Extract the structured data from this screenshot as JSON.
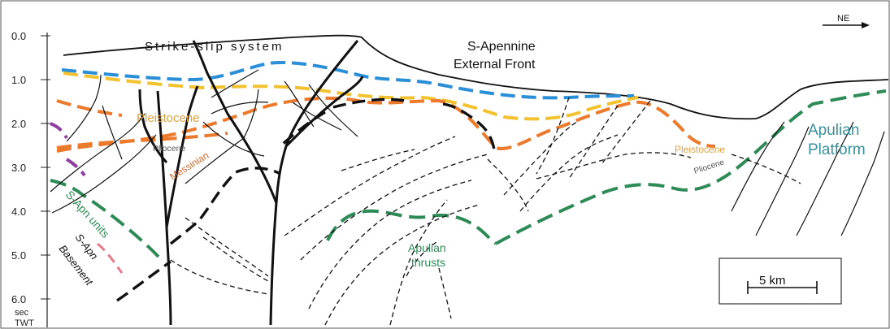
{
  "title": "Strike-slip system",
  "front_label": [
    "S-Apennine",
    "External Front"
  ],
  "direction": "NE",
  "scale_bar": "5 km",
  "y_axis": {
    "ticks": [
      "0.0",
      "1.0",
      "2.0",
      "3.0",
      "4.0",
      "5.0",
      "6.0"
    ],
    "unit": [
      "sec",
      "TWT"
    ]
  },
  "labels": {
    "pleistocene_left": "Pleistocene",
    "pliocene_left": "Pliocene",
    "messinian": "Messinian",
    "s_apn_units": "S-Apn units",
    "s_apn_basement": [
      "S-Apn",
      "Basement"
    ],
    "apulian_thrusts": [
      "Apulian",
      "thrusts"
    ],
    "pleistocene_right": "Pleistocene",
    "pliocene_right": "Pliocene",
    "apulian_platform": [
      "Apulian",
      "Platform"
    ]
  },
  "colors": {
    "blue_horizon": "#2a8fd6",
    "yellow_horizon": "#f2c230",
    "orange_horizon": "#ec7a2c",
    "green_horizon": "#2e8b57",
    "purple_horizon": "#8e3fa0",
    "pink_horizon": "#e67a8e",
    "platform_label": "#3a8f9a",
    "pleistocene_label": "#e0a040",
    "messinian_label": "#d06a30"
  }
}
